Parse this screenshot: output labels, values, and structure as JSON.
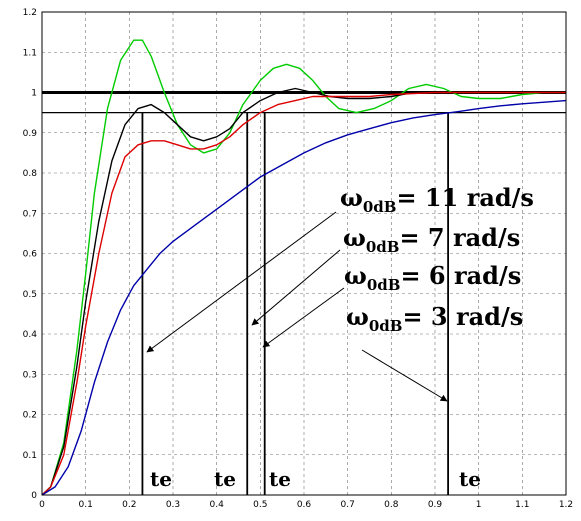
{
  "chart_data": {
    "type": "line",
    "title": "",
    "xlabel": "",
    "ylabel": "",
    "xlim": [
      0,
      1.2
    ],
    "ylim": [
      0,
      1.2
    ],
    "x_ticks": [
      "0",
      "0.1",
      "0.2",
      "0.3",
      "0.4",
      "0.5",
      "0.6",
      "0.7",
      "0.8",
      "0.9",
      "1",
      "1.1",
      "1.2"
    ],
    "y_ticks": [
      "0",
      "0.1",
      "0.2",
      "0.3",
      "0.4",
      "0.5",
      "0.6",
      "0.7",
      "0.8",
      "0.9",
      "1",
      "1.1",
      "1.2"
    ],
    "grid": true,
    "reference_lines": [
      1.0,
      0.95
    ],
    "series": [
      {
        "color": "#00cc00",
        "points": [
          [
            0,
            0
          ],
          [
            0.02,
            0.02
          ],
          [
            0.05,
            0.13
          ],
          [
            0.08,
            0.36
          ],
          [
            0.1,
            0.55
          ],
          [
            0.12,
            0.75
          ],
          [
            0.15,
            0.96
          ],
          [
            0.18,
            1.08
          ],
          [
            0.21,
            1.13
          ],
          [
            0.23,
            1.13
          ],
          [
            0.25,
            1.09
          ],
          [
            0.28,
            1.0
          ],
          [
            0.31,
            0.92
          ],
          [
            0.34,
            0.87
          ],
          [
            0.37,
            0.85
          ],
          [
            0.4,
            0.86
          ],
          [
            0.43,
            0.9
          ],
          [
            0.46,
            0.97
          ],
          [
            0.5,
            1.03
          ],
          [
            0.53,
            1.06
          ],
          [
            0.56,
            1.07
          ],
          [
            0.59,
            1.06
          ],
          [
            0.62,
            1.03
          ],
          [
            0.65,
            0.99
          ],
          [
            0.68,
            0.96
          ],
          [
            0.72,
            0.95
          ],
          [
            0.76,
            0.96
          ],
          [
            0.8,
            0.98
          ],
          [
            0.84,
            1.01
          ],
          [
            0.88,
            1.02
          ],
          [
            0.92,
            1.01
          ],
          [
            0.96,
            0.99
          ],
          [
            1.0,
            0.985
          ],
          [
            1.05,
            0.985
          ],
          [
            1.1,
            0.995
          ],
          [
            1.15,
            1.0
          ],
          [
            1.2,
            1.0
          ]
        ]
      },
      {
        "color": "#000000",
        "points": [
          [
            0,
            0
          ],
          [
            0.02,
            0.02
          ],
          [
            0.05,
            0.12
          ],
          [
            0.08,
            0.32
          ],
          [
            0.1,
            0.48
          ],
          [
            0.13,
            0.68
          ],
          [
            0.16,
            0.83
          ],
          [
            0.19,
            0.92
          ],
          [
            0.22,
            0.96
          ],
          [
            0.25,
            0.97
          ],
          [
            0.28,
            0.95
          ],
          [
            0.31,
            0.92
          ],
          [
            0.34,
            0.89
          ],
          [
            0.37,
            0.88
          ],
          [
            0.4,
            0.89
          ],
          [
            0.43,
            0.91
          ],
          [
            0.46,
            0.95
          ],
          [
            0.5,
            0.98
          ],
          [
            0.54,
            1.0
          ],
          [
            0.58,
            1.01
          ],
          [
            0.62,
            1.0
          ],
          [
            0.66,
            0.99
          ],
          [
            0.7,
            0.985
          ],
          [
            0.75,
            0.985
          ],
          [
            0.8,
            0.99
          ],
          [
            0.85,
            1.0
          ],
          [
            0.9,
            1.0
          ],
          [
            1.0,
            1.0
          ],
          [
            1.2,
            1.0
          ]
        ]
      },
      {
        "color": "#dd0000",
        "points": [
          [
            0,
            0
          ],
          [
            0.02,
            0.02
          ],
          [
            0.05,
            0.1
          ],
          [
            0.08,
            0.28
          ],
          [
            0.1,
            0.42
          ],
          [
            0.13,
            0.6
          ],
          [
            0.16,
            0.75
          ],
          [
            0.19,
            0.84
          ],
          [
            0.22,
            0.87
          ],
          [
            0.25,
            0.88
          ],
          [
            0.28,
            0.88
          ],
          [
            0.31,
            0.87
          ],
          [
            0.34,
            0.86
          ],
          [
            0.37,
            0.86
          ],
          [
            0.4,
            0.87
          ],
          [
            0.43,
            0.89
          ],
          [
            0.46,
            0.92
          ],
          [
            0.5,
            0.95
          ],
          [
            0.54,
            0.97
          ],
          [
            0.58,
            0.98
          ],
          [
            0.62,
            0.99
          ],
          [
            0.66,
            0.99
          ],
          [
            0.7,
            0.99
          ],
          [
            0.75,
            0.99
          ],
          [
            0.8,
            0.995
          ],
          [
            0.9,
            1.0
          ],
          [
            1.0,
            1.0
          ],
          [
            1.2,
            1.0
          ]
        ]
      },
      {
        "color": "#0000aa",
        "points": [
          [
            0,
            0
          ],
          [
            0.03,
            0.02
          ],
          [
            0.06,
            0.07
          ],
          [
            0.09,
            0.16
          ],
          [
            0.12,
            0.28
          ],
          [
            0.15,
            0.38
          ],
          [
            0.18,
            0.46
          ],
          [
            0.21,
            0.52
          ],
          [
            0.24,
            0.56
          ],
          [
            0.27,
            0.6
          ],
          [
            0.3,
            0.63
          ],
          [
            0.35,
            0.67
          ],
          [
            0.4,
            0.71
          ],
          [
            0.45,
            0.75
          ],
          [
            0.5,
            0.79
          ],
          [
            0.55,
            0.82
          ],
          [
            0.6,
            0.85
          ],
          [
            0.65,
            0.875
          ],
          [
            0.7,
            0.895
          ],
          [
            0.75,
            0.91
          ],
          [
            0.8,
            0.925
          ],
          [
            0.85,
            0.937
          ],
          [
            0.9,
            0.945
          ],
          [
            0.95,
            0.952
          ],
          [
            1.0,
            0.96
          ],
          [
            1.05,
            0.967
          ],
          [
            1.1,
            0.972
          ],
          [
            1.15,
            0.976
          ],
          [
            1.2,
            0.98
          ]
        ]
      }
    ],
    "te_markers": [
      {
        "x": 0.23,
        "label": "te"
      },
      {
        "x": 0.47,
        "label": "te"
      },
      {
        "x": 0.51,
        "label": "te"
      },
      {
        "x": 0.93,
        "label": "te"
      }
    ],
    "annotations": [
      {
        "prefix": "ω",
        "sub": "0dB",
        "value": "= 11 rad/s"
      },
      {
        "prefix": "ω",
        "sub": "0dB",
        "value": "= 7 rad/s"
      },
      {
        "prefix": "ω",
        "sub": "0dB",
        "value": "= 6 rad/s"
      },
      {
        "prefix": "ω",
        "sub": "0dB",
        "value": "= 3 rad/s"
      }
    ]
  }
}
